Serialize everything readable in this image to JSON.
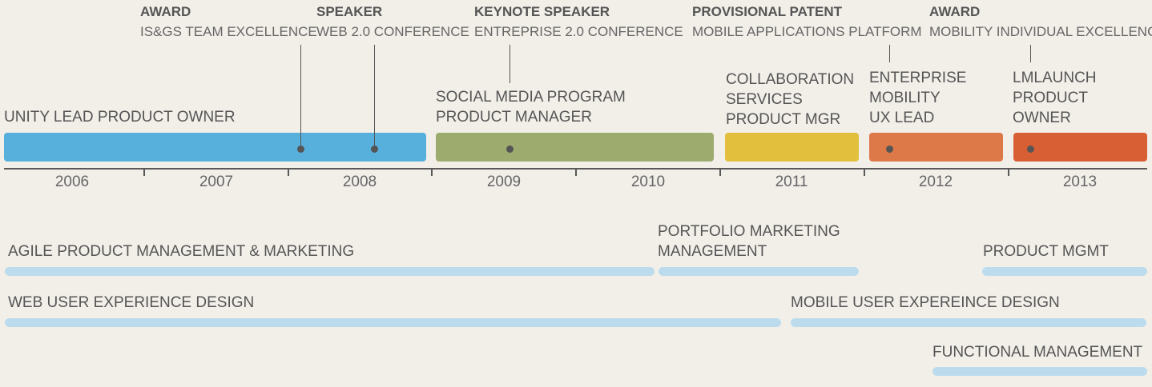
{
  "milestones": [
    {
      "title": "AWARD",
      "desc": "IS&GS TEAM EXCELLENCE"
    },
    {
      "title": "SPEAKER",
      "desc": "WEB 2.0 CONFERENCE"
    },
    {
      "title": "KEYNOTE SPEAKER",
      "desc": "ENTREPRISE 2.0 CONFERENCE"
    },
    {
      "title": "PROVISIONAL PATENT",
      "desc": "MOBILE APPLICATIONS PLATFORM"
    },
    {
      "title": "AWARD",
      "desc": "MOBILITY INDIVIDUAL EXCELLENCE"
    }
  ],
  "roles": [
    {
      "lines": [
        "UNITY LEAD PRODUCT OWNER"
      ],
      "color": "#57b0dc"
    },
    {
      "lines": [
        "SOCIAL MEDIA PROGRAM",
        "PRODUCT MANAGER"
      ],
      "color": "#9dab6e"
    },
    {
      "lines": [
        "COLLABORATION",
        "SERVICES",
        "PRODUCT MGR"
      ],
      "color": "#e2c03d"
    },
    {
      "lines": [
        "ENTERPRISE",
        "MOBILITY",
        "UX LEAD"
      ],
      "color": "#dd7848"
    },
    {
      "lines": [
        "LMLAUNCH",
        "PRODUCT",
        "OWNER"
      ],
      "color": "#d75f33"
    }
  ],
  "years": [
    "2006",
    "2007",
    "2008",
    "2009",
    "2010",
    "2011",
    "2012",
    "2013"
  ],
  "skills": [
    {
      "lines": [
        "AGILE PRODUCT MANAGEMENT & MARKETING"
      ]
    },
    {
      "lines": [
        "PORTFOLIO MARKETING",
        "MANAGEMENT"
      ]
    },
    {
      "lines": [
        "PRODUCT MGMT"
      ]
    },
    {
      "lines": [
        "WEB USER EXPERIENCE DESIGN"
      ]
    },
    {
      "lines": [
        "MOBILE USER EXPEREINCE DESIGN"
      ]
    },
    {
      "lines": [
        "FUNCTIONAL MANAGEMENT"
      ]
    }
  ],
  "colors": {
    "skill_bar": "#bcdcee",
    "background": "#f2efe9"
  }
}
